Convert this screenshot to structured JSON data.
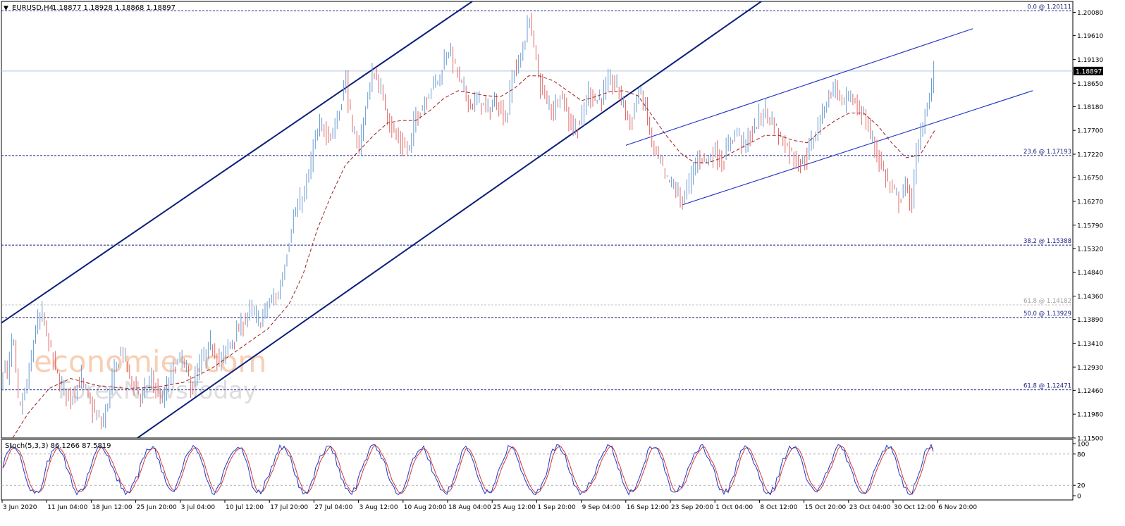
{
  "header": {
    "symbol": "EURUSD,H4",
    "ohlc": "1.18877 1.18928 1.18868 1.18897",
    "arrow": "▼"
  },
  "watermark": {
    "line1": "economies.com",
    "line2": "ForexNewsToday"
  },
  "colors": {
    "bull_candle": "#6b9bd1",
    "bear_candle": "#e06868",
    "channel_line": "#0a1f7a",
    "ma": "#9a1e1e",
    "fib_line": "#1a237e",
    "fib_label": "#1a237e",
    "fib_faded": "#9e9e9e",
    "stoch_main": "#1e3ac8",
    "stoch_signal": "#d23a3a"
  },
  "chart_data": {
    "type": "candlestick",
    "title": "EURUSD,H4",
    "price_axis": {
      "ticks": [
        "1.20080",
        "1.19610",
        "1.19130",
        "1.18650",
        "1.18180",
        "1.17700",
        "1.17220",
        "1.16750",
        "1.16270",
        "1.15790",
        "1.15320",
        "1.14840",
        "1.14360",
        "1.13890",
        "1.13410",
        "1.12930",
        "1.12460",
        "1.11980",
        "1.11500"
      ],
      "range": [
        1.115,
        1.203
      ]
    },
    "current_price": "1.18897",
    "x_axis": {
      "labels": [
        "3 Jun 2020",
        "11 Jun 04:00",
        "18 Jun 12:00",
        "25 Jun 20:00",
        "3 Jul 04:00",
        "10 Jul 12:00",
        "17 Jul 20:00",
        "27 Jul 04:00",
        "3 Aug 12:00",
        "10 Aug 20:00",
        "18 Aug 04:00",
        "25 Aug 12:00",
        "1 Sep 20:00",
        "9 Sep 04:00",
        "16 Sep 12:00",
        "23 Sep 20:00",
        "1 Oct 04:00",
        "8 Oct 12:00",
        "15 Oct 20:00",
        "23 Oct 04:00",
        "30 Oct 12:00",
        "6 Nov 20:00"
      ]
    },
    "fibonacci_levels": [
      {
        "label": "0.0 @ 1.20111",
        "price": 1.20111,
        "faded": false
      },
      {
        "label": "23.6 @ 1.17193",
        "price": 1.17193,
        "faded": false
      },
      {
        "label": "38.2 @ 1.15388",
        "price": 1.15388,
        "faded": false
      },
      {
        "label": "61.8 @ 1.14182",
        "price": 1.14182,
        "faded": true
      },
      {
        "label": "50.0 @ 1.13929",
        "price": 1.13929,
        "faded": false
      },
      {
        "label": "61.8 @ 1.12471",
        "price": 1.12471,
        "faded": false
      }
    ],
    "price_path": [
      [
        0,
        1.123
      ],
      [
        5,
        1.131
      ],
      [
        10,
        1.127
      ],
      [
        18,
        1.136
      ],
      [
        27,
        1.12
      ],
      [
        40,
        1.127
      ],
      [
        50,
        1.137
      ],
      [
        60,
        1.14
      ],
      [
        72,
        1.132
      ],
      [
        85,
        1.126
      ],
      [
        100,
        1.123
      ],
      [
        115,
        1.127
      ],
      [
        130,
        1.121
      ],
      [
        145,
        1.1175
      ],
      [
        160,
        1.127
      ],
      [
        172,
        1.133
      ],
      [
        185,
        1.127
      ],
      [
        200,
        1.123
      ],
      [
        215,
        1.127
      ],
      [
        230,
        1.122
      ],
      [
        245,
        1.129
      ],
      [
        258,
        1.131
      ],
      [
        272,
        1.125
      ],
      [
        285,
        1.13
      ],
      [
        300,
        1.134
      ],
      [
        312,
        1.13
      ],
      [
        325,
        1.134
      ],
      [
        340,
        1.137
      ],
      [
        355,
        1.141
      ],
      [
        368,
        1.138
      ],
      [
        380,
        1.142
      ],
      [
        395,
        1.144
      ],
      [
        405,
        1.151
      ],
      [
        415,
        1.159
      ],
      [
        425,
        1.162
      ],
      [
        435,
        1.166
      ],
      [
        445,
        1.174
      ],
      [
        455,
        1.178
      ],
      [
        470,
        1.176
      ],
      [
        480,
        1.18
      ],
      [
        490,
        1.188
      ],
      [
        500,
        1.176
      ],
      [
        510,
        1.174
      ],
      [
        520,
        1.183
      ],
      [
        530,
        1.189
      ],
      [
        540,
        1.185
      ],
      [
        550,
        1.18
      ],
      [
        560,
        1.176
      ],
      [
        570,
        1.174
      ],
      [
        580,
        1.173
      ],
      [
        590,
        1.18
      ],
      [
        600,
        1.182
      ],
      [
        612,
        1.186
      ],
      [
        625,
        1.188
      ],
      [
        635,
        1.194
      ],
      [
        645,
        1.19
      ],
      [
        655,
        1.186
      ],
      [
        668,
        1.182
      ],
      [
        680,
        1.183
      ],
      [
        692,
        1.181
      ],
      [
        705,
        1.183
      ],
      [
        718,
        1.179
      ],
      [
        728,
        1.189
      ],
      [
        738,
        1.191
      ],
      [
        745,
        1.196
      ],
      [
        752,
        1.2
      ],
      [
        758,
        1.193
      ],
      [
        765,
        1.187
      ],
      [
        775,
        1.183
      ],
      [
        785,
        1.181
      ],
      [
        795,
        1.185
      ],
      [
        805,
        1.18
      ],
      [
        815,
        1.177
      ],
      [
        825,
        1.179
      ],
      [
        835,
        1.185
      ],
      [
        845,
        1.183
      ],
      [
        855,
        1.184
      ],
      [
        865,
        1.187
      ],
      [
        875,
        1.186
      ],
      [
        885,
        1.182
      ],
      [
        895,
        1.178
      ],
      [
        905,
        1.185
      ],
      [
        915,
        1.182
      ],
      [
        925,
        1.174
      ],
      [
        935,
        1.171
      ],
      [
        945,
        1.167
      ],
      [
        955,
        1.166
      ],
      [
        965,
        1.163
      ],
      [
        975,
        1.165
      ],
      [
        985,
        1.17
      ],
      [
        995,
        1.172
      ],
      [
        1005,
        1.171
      ],
      [
        1015,
        1.173
      ],
      [
        1025,
        1.17
      ],
      [
        1035,
        1.175
      ],
      [
        1045,
        1.177
      ],
      [
        1055,
        1.174
      ],
      [
        1065,
        1.176
      ],
      [
        1075,
        1.179
      ],
      [
        1085,
        1.181
      ],
      [
        1095,
        1.179
      ],
      [
        1105,
        1.176
      ],
      [
        1115,
        1.174
      ],
      [
        1125,
        1.172
      ],
      [
        1135,
        1.17
      ],
      [
        1145,
        1.172
      ],
      [
        1155,
        1.176
      ],
      [
        1165,
        1.18
      ],
      [
        1175,
        1.184
      ],
      [
        1185,
        1.186
      ],
      [
        1195,
        1.182
      ],
      [
        1205,
        1.184
      ],
      [
        1215,
        1.182
      ],
      [
        1225,
        1.18
      ],
      [
        1235,
        1.176
      ],
      [
        1245,
        1.172
      ],
      [
        1255,
        1.168
      ],
      [
        1265,
        1.165
      ],
      [
        1275,
        1.163
      ],
      [
        1285,
        1.166
      ],
      [
        1293,
        1.162
      ],
      [
        1300,
        1.172
      ],
      [
        1310,
        1.179
      ],
      [
        1318,
        1.184
      ],
      [
        1326,
        1.189
      ]
    ],
    "moving_average": [
      [
        18,
        1.115
      ],
      [
        40,
        1.12
      ],
      [
        70,
        1.125
      ],
      [
        100,
        1.127
      ],
      [
        140,
        1.1255
      ],
      [
        180,
        1.125
      ],
      [
        220,
        1.1252
      ],
      [
        260,
        1.1262
      ],
      [
        300,
        1.129
      ],
      [
        340,
        1.133
      ],
      [
        380,
        1.137
      ],
      [
        410,
        1.142
      ],
      [
        430,
        1.148
      ],
      [
        450,
        1.157
      ],
      [
        470,
        1.164
      ],
      [
        490,
        1.17
      ],
      [
        510,
        1.173
      ],
      [
        530,
        1.176
      ],
      [
        550,
        1.1785
      ],
      [
        570,
        1.179
      ],
      [
        590,
        1.179
      ],
      [
        610,
        1.181
      ],
      [
        630,
        1.1835
      ],
      [
        650,
        1.185
      ],
      [
        670,
        1.1845
      ],
      [
        690,
        1.184
      ],
      [
        710,
        1.1838
      ],
      [
        730,
        1.1855
      ],
      [
        750,
        1.188
      ],
      [
        765,
        1.188
      ],
      [
        785,
        1.187
      ],
      [
        805,
        1.185
      ],
      [
        825,
        1.183
      ],
      [
        845,
        1.1838
      ],
      [
        865,
        1.1848
      ],
      [
        885,
        1.185
      ],
      [
        905,
        1.184
      ],
      [
        925,
        1.18
      ],
      [
        945,
        1.176
      ],
      [
        965,
        1.1725
      ],
      [
        985,
        1.1705
      ],
      [
        1005,
        1.1705
      ],
      [
        1025,
        1.1715
      ],
      [
        1045,
        1.173
      ],
      [
        1065,
        1.1745
      ],
      [
        1085,
        1.176
      ],
      [
        1105,
        1.176
      ],
      [
        1125,
        1.175
      ],
      [
        1145,
        1.1745
      ],
      [
        1165,
        1.177
      ],
      [
        1185,
        1.179
      ],
      [
        1205,
        1.1805
      ],
      [
        1225,
        1.1805
      ],
      [
        1245,
        1.178
      ],
      [
        1265,
        1.1745
      ],
      [
        1285,
        1.1715
      ],
      [
        1305,
        1.172
      ],
      [
        1326,
        1.177
      ]
    ],
    "trendlines": [
      {
        "name": "channel-upper",
        "from": [
          0,
          1.138
        ],
        "to": [
          670,
          1.203
        ],
        "thick": true
      },
      {
        "name": "channel-lower",
        "from": [
          195,
          1.115
        ],
        "to": [
          1080,
          1.203
        ],
        "thick": true
      },
      {
        "name": "rising-channel-upper",
        "from": [
          888,
          1.174
        ],
        "to": [
          1380,
          1.1975
        ],
        "thick": false
      },
      {
        "name": "rising-channel-lower",
        "from": [
          968,
          1.162
        ],
        "to": [
          1465,
          1.185
        ],
        "thick": false
      }
    ],
    "stochastic": {
      "label": "Stoch(5,3,3) 86.1266 87.5819",
      "ticks": [
        "100",
        "80",
        "20",
        "0"
      ],
      "levels": [
        20,
        80
      ]
    }
  }
}
